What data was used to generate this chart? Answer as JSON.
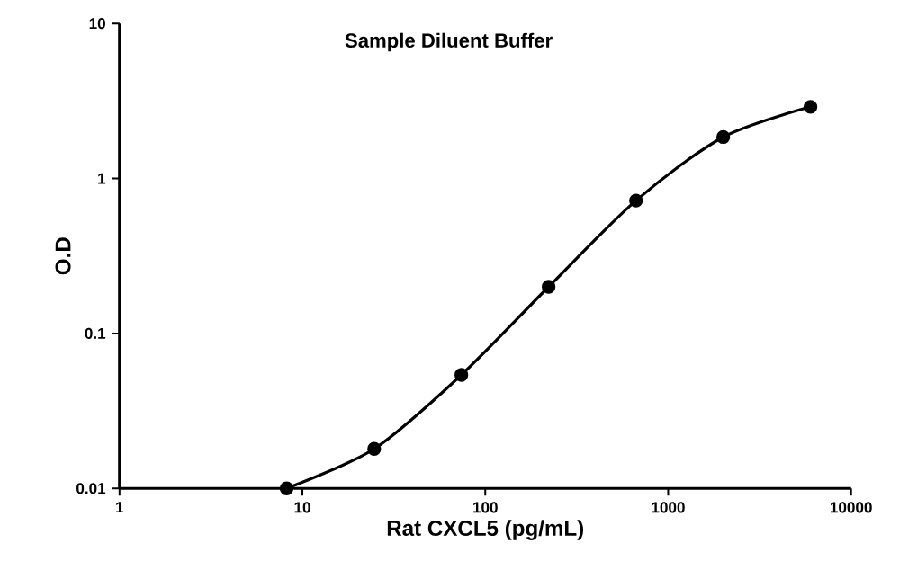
{
  "chart_data": {
    "type": "line",
    "title": "Sample Diluent Buffer",
    "xlabel": "Rat CXCL5 (pg/mL)",
    "ylabel": "O.D",
    "x": [
      8.2,
      24.7,
      74,
      222,
      667,
      2000,
      6000
    ],
    "series": [
      {
        "color": "#000000",
        "values": [
          0.01,
          0.018,
          0.054,
          0.2,
          0.72,
          1.85,
          2.9
        ]
      }
    ],
    "log": "xy",
    "xlim": [
      1,
      10000
    ],
    "ylim": [
      0.01,
      10
    ],
    "xticks": [
      1,
      10,
      100,
      1000,
      10000
    ],
    "yticks": [
      0.01,
      0.1,
      1,
      10
    ],
    "grid": false,
    "marker": "circle",
    "line_style": "solid"
  }
}
